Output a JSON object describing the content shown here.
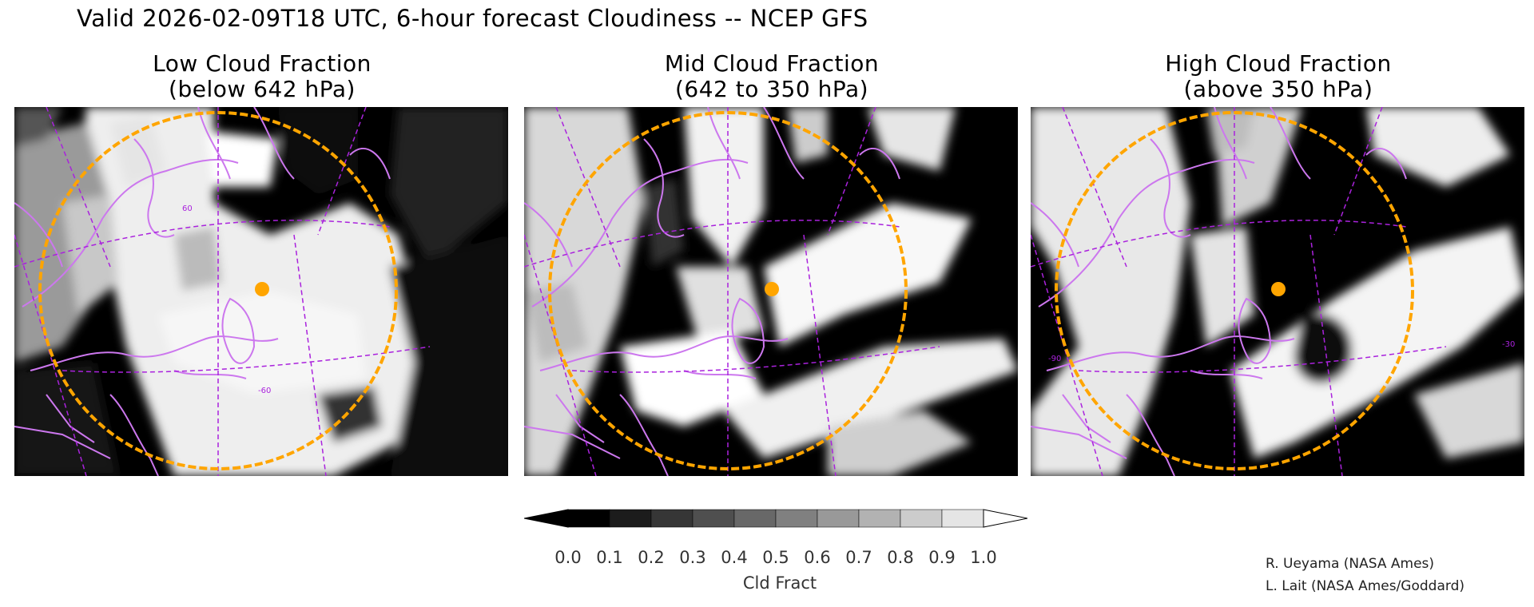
{
  "header": {
    "title": "Valid 2026-02-09T18 UTC, 6-hour forecast Cloudiness -- NCEP GFS"
  },
  "panels": [
    {
      "title": "Low Cloud Fraction",
      "subtitle": "(below 642 hPa)"
    },
    {
      "title": "Mid Cloud Fraction",
      "subtitle": "(642 to 350 hPa)"
    },
    {
      "title": "High Cloud Fraction",
      "subtitle": "(above 350 hPa)"
    }
  ],
  "map_labels": {
    "lat_60": "60",
    "lon_60": "-60",
    "lon_90": "-90",
    "lon_30": "-30"
  },
  "colorbar": {
    "label": "Cld Fract",
    "ticks": [
      "0.0",
      "0.1",
      "0.2",
      "0.3",
      "0.4",
      "0.5",
      "0.6",
      "0.7",
      "0.8",
      "0.9",
      "1.0"
    ],
    "colors": [
      "#000000",
      "#1c1c1c",
      "#363636",
      "#4f4f4f",
      "#686868",
      "#808080",
      "#999999",
      "#b2b2b2",
      "#cccccc",
      "#e5e5e5",
      "#ffffff"
    ]
  },
  "credits": {
    "line1": "R. Ueyama (NASA Ames)",
    "line2": "L. Lait (NASA Ames/Goddard)"
  },
  "colors": {
    "coastline": "#cc77ee",
    "graticule": "#aa22dd",
    "range_ring": "#ffa500",
    "site_marker": "#ffa500"
  },
  "marker_icon": "site-dot-icon"
}
